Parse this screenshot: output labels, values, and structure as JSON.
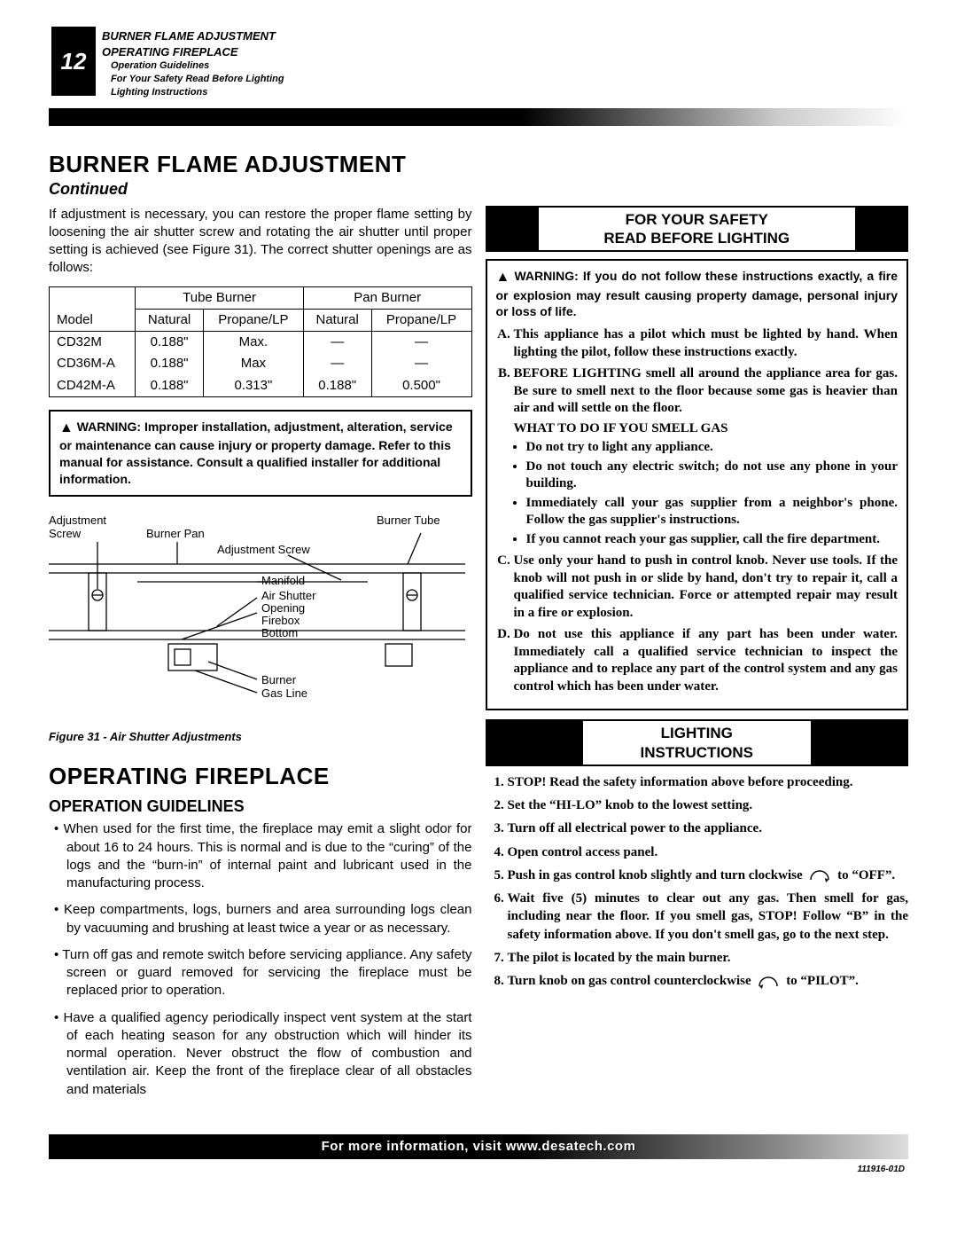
{
  "page_number": "12",
  "toc": {
    "line1": "BURNER FLAME ADJUSTMENT",
    "line2": "OPERATING FIREPLACE",
    "sub1": "Operation Guidelines",
    "sub2": "For Your Safety Read Before Lighting",
    "sub3": "Lighting Instructions"
  },
  "h1_burner": "BURNER FLAME ADJUSTMENT",
  "continued": "Continued",
  "intro_para": "If adjustment is necessary, you can restore the proper flame setting by loosening the air shutter screw and rotating the air shutter until proper setting is achieved (see Figure 31). The correct shutter openings are as follows:",
  "table": {
    "h_model": "Model",
    "h_tube": "Tube Burner",
    "h_pan": "Pan Burner",
    "h_nat": "Natural",
    "h_lp": "Propane/LP",
    "rows": [
      {
        "model": "CD32M",
        "tn": "0.188\"",
        "tlp": "Max.",
        "pn": "—",
        "plp": "—"
      },
      {
        "model": "CD36M-A",
        "tn": "0.188\"",
        "tlp": "Max",
        "pn": "—",
        "plp": "—"
      },
      {
        "model": "CD42M-A",
        "tn": "0.188\"",
        "tlp": "0.313\"",
        "pn": "0.188\"",
        "plp": "0.500\""
      }
    ]
  },
  "warn1": "WARNING: Improper installation, adjustment, alteration, service or maintenance can cause injury or property damage. Refer to this manual for assistance. Consult a qualified installer for additional information.",
  "diagram_labels": {
    "adj_screw": "Adjustment\nScrew",
    "burner_pan": "Burner Pan",
    "adj_screw2": "Adjustment Screw",
    "burner_tube": "Burner Tube",
    "manifold": "Manifold",
    "air_shutter": "Air Shutter\nOpening",
    "firebox": "Firebox\nBottom",
    "burner": "Burner",
    "gas_line": "Gas Line"
  },
  "fig_caption": "Figure 31 - Air Shutter Adjustments",
  "h1_operating": "OPERATING FIREPLACE",
  "h2_guidelines": "OPERATION GUIDELINES",
  "op_paras": [
    "When used for the first time, the fireplace may emit a slight odor for about 16 to 24 hours. This is normal and is due to the “curing” of the logs and the “burn-in” of internal paint and lubricant used in the manufacturing process.",
    "Keep compartments, logs, burners and area surrounding logs clean by vacuuming and brushing at least twice a year or as necessary.",
    "Turn off gas and remote switch before servicing appliance. Any safety screen or guard removed for servicing the fireplace must be replaced prior to operation.",
    "Have a qualified agency periodically inspect vent system at the start of each heating season for any obstruction which will hinder its normal operation. Never obstruct the flow of combustion and ventilation air. Keep the front of the fireplace clear of all obstacles and materials"
  ],
  "banner_safety": {
    "line1": "FOR YOUR SAFETY",
    "line2": "READ BEFORE LIGHTING"
  },
  "safety_warn": "WARNING: If you do not follow these instructions exactly, a fire or explosion may result causing property damage, personal injury or loss of life.",
  "safety_items": {
    "A": "This appliance has a pilot which must be lighted by hand. When lighting the pilot, follow these instructions exactly.",
    "B": "BEFORE LIGHTING smell all around the appliance area for gas. Be sure to smell next to the floor because some gas is heavier than air and will settle on the floor.",
    "gas_head": "WHAT TO DO IF YOU SMELL GAS",
    "gas_bullets": [
      "Do not try to light any appliance.",
      "Do not touch any electric switch; do not use any phone in your building.",
      "Immediately call your gas supplier from a neighbor's phone. Follow the gas supplier's instructions.",
      "If you cannot reach your gas supplier, call the fire department."
    ],
    "C": "Use only your hand to push in control knob. Never use tools. If the knob will not push in or slide by hand, don't try to repair it, call a qualified service technician. Force or attempted repair may result in a fire or explosion.",
    "D": "Do not use this appliance if any part has been under water. Immediately call a qualified service technician to inspect the appliance and to replace any part of the control system and any gas control which has been under water."
  },
  "banner_lighting": {
    "line1": "LIGHTING",
    "line2": "INSTRUCTIONS"
  },
  "lighting_steps": [
    "STOP! Read the safety information above before proceeding.",
    "Set the “HI-LO” knob to the lowest setting.",
    "Turn off all electrical power to the appliance.",
    "Open control access panel.",
    "Push in gas control knob slightly and turn clockwise {CW} to “OFF”.",
    "Wait five (5) minutes to clear out any gas. Then smell for gas, including near the floor. If you smell gas, STOP!  Follow “B”  in the safety information above. If you don't smell gas, go to the next step.",
    "The pilot is located by the main burner.",
    "Turn knob on gas control counterclockwise {CCW} to “PILOT”."
  ],
  "footer": "For more information, visit www.desatech.com",
  "doc_id": "111916-01D",
  "colors": {
    "black": "#000000",
    "white": "#ffffff"
  }
}
